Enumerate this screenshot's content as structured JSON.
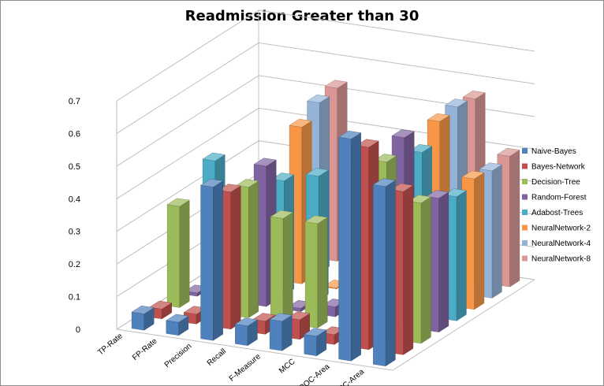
{
  "chart_data": {
    "type": "bar",
    "title": "Readmission Greater than 30",
    "xlabel": "",
    "ylabel": "",
    "ylim": [
      0,
      0.7
    ],
    "yticks": [
      "0",
      "0.1",
      "0.2",
      "0.3",
      "0.4",
      "0.5",
      "0.6",
      "0.7"
    ],
    "grid": true,
    "legend_position": "right",
    "categories": [
      "TP-Rate",
      "FP-Rate",
      "Precision",
      "Recall",
      "F-Measure",
      "MCC",
      "ROC-Area",
      "PRC-Area"
    ],
    "series": [
      {
        "name": "Naive-Bayes",
        "color": "#4f81bd",
        "values": [
          0.05,
          0.04,
          0.47,
          0.06,
          0.09,
          0.06,
          0.68,
          0.55
        ]
      },
      {
        "name": "Bayes-Network",
        "color": "#c0504d",
        "values": [
          0.03,
          0.03,
          0.42,
          0.04,
          0.06,
          0.03,
          0.62,
          0.5
        ]
      },
      {
        "name": "Decision-Tree",
        "color": "#9bbb59",
        "values": [
          0.31,
          0.0,
          0.4,
          0.32,
          0.32,
          0.09,
          0.54,
          0.43
        ]
      },
      {
        "name": "Random-Forest",
        "color": "#8064a2",
        "values": [
          0.01,
          0.0,
          0.43,
          0.01,
          0.03,
          0.02,
          0.58,
          0.41
        ]
      },
      {
        "name": "Adabost-Trees",
        "color": "#4bacc6",
        "values": [
          0.38,
          0.0,
          0.35,
          0.38,
          0.4,
          0.1,
          0.5,
          0.38
        ]
      },
      {
        "name": "NeuralNetwork-2",
        "color": "#f79646",
        "values": [
          0.0,
          0.0,
          0.48,
          0.0,
          0.01,
          0.0,
          0.56,
          0.4
        ]
      },
      {
        "name": "NeuralNetwork-4",
        "color": "#95b3d7",
        "values": [
          0.0,
          0.0,
          0.52,
          0.0,
          0.02,
          0.0,
          0.57,
          0.39
        ]
      },
      {
        "name": "NeuralNetwork-8",
        "color": "#d99694",
        "values": [
          0.0,
          0.0,
          0.53,
          0.0,
          0.02,
          0.0,
          0.56,
          0.4
        ]
      }
    ]
  }
}
